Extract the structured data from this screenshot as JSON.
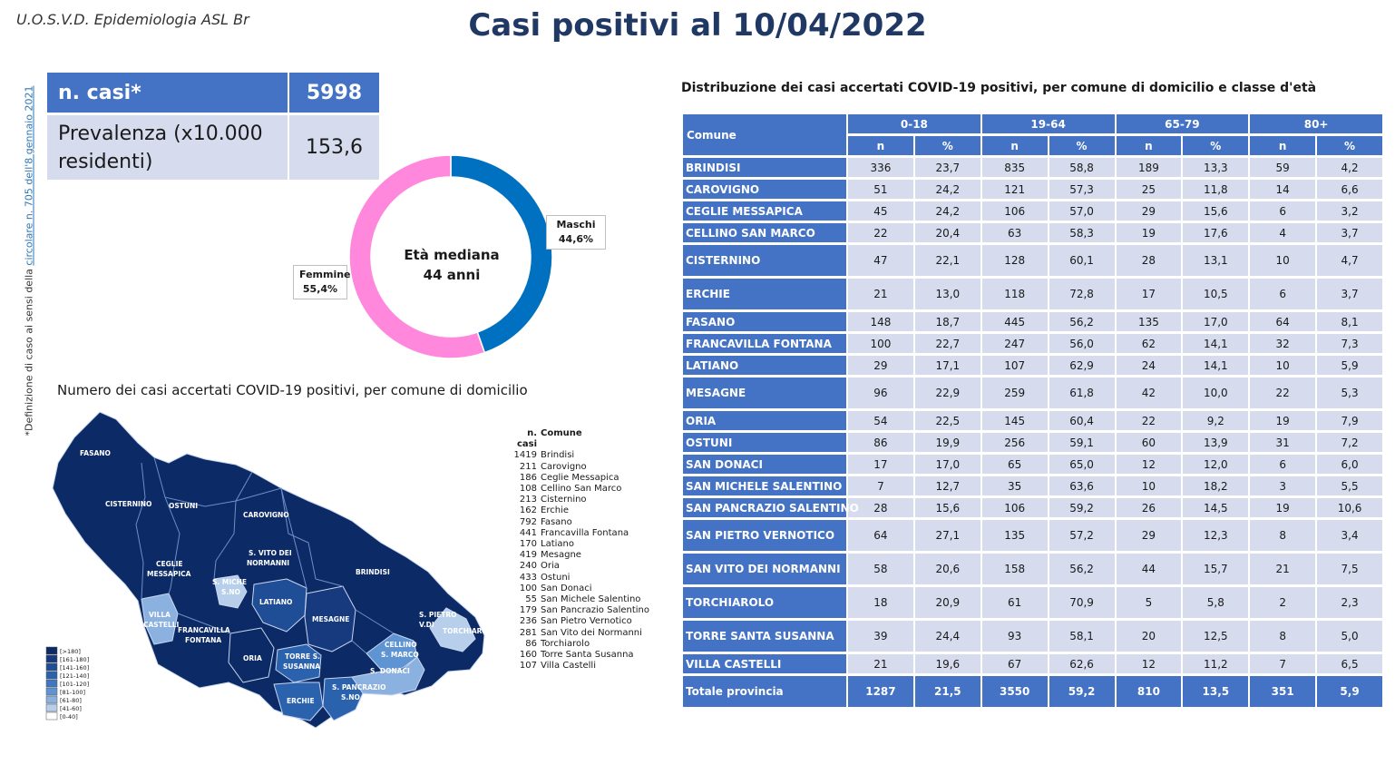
{
  "org": "U.O.S.V.D. Epidemiologia ASL Br",
  "title": "Casi positivi al 10/04/2022",
  "side_note": {
    "prefix": "*Definizione di caso ai sensi della ",
    "link": "circolare n. 705 dell'8 gennaio 2021"
  },
  "summary": {
    "cases_label": "n. casi*",
    "cases_value": "5998",
    "prevalence_label": "Prevalenza (x10.000 residenti)",
    "prevalence_value": "153,6"
  },
  "chart_data": [
    {
      "type": "pie",
      "donut": true,
      "labels": [
        "Maschi",
        "Femmine"
      ],
      "values": [
        44.6,
        55.4
      ],
      "value_labels": [
        "44,6%",
        "55,4%"
      ],
      "colors": [
        "#0070c0",
        "#ff88dd"
      ],
      "center_text": [
        "Età mediana",
        "44 anni"
      ]
    }
  ],
  "map": {
    "title": "Numero dei casi accertati COVID-19 positivi, per comune di domicilio",
    "legend_classes": [
      "[>180]",
      "[161-180]",
      "[141-160]",
      "[121-140]",
      "[101-120]",
      "[81-100]",
      "[61-80]",
      "[41-60]",
      "[0-40]"
    ],
    "legend_colors": [
      "#0c2a66",
      "#173a7f",
      "#1f4e96",
      "#2b62ae",
      "#3f78c2",
      "#5f94d2",
      "#8ab1df",
      "#b7cfeb",
      "#ffffff"
    ],
    "list_header_n": "n. casi",
    "list_header_comune": "Comune",
    "list": [
      {
        "n": "1419",
        "comune": "Brindisi"
      },
      {
        "n": "211",
        "comune": "Carovigno"
      },
      {
        "n": "186",
        "comune": "Ceglie Messapica"
      },
      {
        "n": "108",
        "comune": "Cellino San Marco"
      },
      {
        "n": "213",
        "comune": "Cisternino"
      },
      {
        "n": "162",
        "comune": "Erchie"
      },
      {
        "n": "792",
        "comune": "Fasano"
      },
      {
        "n": "441",
        "comune": "Francavilla Fontana"
      },
      {
        "n": "170",
        "comune": "Latiano"
      },
      {
        "n": "419",
        "comune": "Mesagne"
      },
      {
        "n": "240",
        "comune": "Oria"
      },
      {
        "n": "433",
        "comune": "Ostuni"
      },
      {
        "n": "100",
        "comune": "San Donaci"
      },
      {
        "n": "55",
        "comune": "San Michele Salentino"
      },
      {
        "n": "179",
        "comune": "San Pancrazio Salentino"
      },
      {
        "n": "236",
        "comune": "San Pietro Vernotico"
      },
      {
        "n": "281",
        "comune": "San Vito dei Normanni"
      },
      {
        "n": "86",
        "comune": "Torchiarolo"
      },
      {
        "n": "160",
        "comune": "Torre Santa Susanna"
      },
      {
        "n": "107",
        "comune": "Villa Castelli"
      }
    ],
    "labels": {
      "fasano": "FASANO",
      "cisternino": "CISTERNINO",
      "ostuni": "OSTUNI",
      "carovigno": "CAROVIGNO",
      "ceglie1": "CEGLIE",
      "ceglie2": "MESSAPICA",
      "svito1": "S. VITO DEI",
      "svito2": "NORMANNI",
      "brindisi": "BRINDISI",
      "smichele1": "S. MICHE",
      "smichele2": "S.NO",
      "latiano": "LATIANO",
      "villa1": "VILLA",
      "villa2": "CASTELLI",
      "francavilla1": "FRANCAVILLA",
      "francavilla2": "FONTANA",
      "mesagne": "MESAGNE",
      "spietro1": "S. PIETRO",
      "spietro2": "V.DI",
      "torchiarolo": "TORCHIAROLO",
      "cellino1": "CELLINO",
      "cellino2": "S. MARCO",
      "oria": "ORIA",
      "torre1": "TORRE S.",
      "torre2": "SUSANNA",
      "sdonaci": "S. DONACI",
      "spancrazio1": "S. PANCRAZIO",
      "spancrazio2": "S.NO",
      "erchie": "ERCHIE"
    }
  },
  "table": {
    "title": "Distribuzione dei casi accertati COVID-19 positivi, per comune di domicilio e classe d'età",
    "comune_header": "Comune",
    "age_groups": [
      "0-18",
      "19-64",
      "65-79",
      "80+"
    ],
    "sub_n": "n",
    "sub_pct": "%",
    "rows": [
      {
        "comune": "BRINDISI",
        "vals": [
          "336",
          "23,7",
          "835",
          "58,8",
          "189",
          "13,3",
          "59",
          "4,2"
        ]
      },
      {
        "comune": "CAROVIGNO",
        "vals": [
          "51",
          "24,2",
          "121",
          "57,3",
          "25",
          "11,8",
          "14",
          "6,6"
        ]
      },
      {
        "comune": "CEGLIE MESSAPICA",
        "vals": [
          "45",
          "24,2",
          "106",
          "57,0",
          "29",
          "15,6",
          "6",
          "3,2"
        ]
      },
      {
        "comune": "CELLINO SAN MARCO",
        "vals": [
          "22",
          "20,4",
          "63",
          "58,3",
          "19",
          "17,6",
          "4",
          "3,7"
        ]
      },
      {
        "comune": "CISTERNINO",
        "vals": [
          "47",
          "22,1",
          "128",
          "60,1",
          "28",
          "13,1",
          "10",
          "4,7"
        ]
      },
      {
        "comune": "ERCHIE",
        "vals": [
          "21",
          "13,0",
          "118",
          "72,8",
          "17",
          "10,5",
          "6",
          "3,7"
        ]
      },
      {
        "comune": "FASANO",
        "vals": [
          "148",
          "18,7",
          "445",
          "56,2",
          "135",
          "17,0",
          "64",
          "8,1"
        ]
      },
      {
        "comune": "FRANCAVILLA FONTANA",
        "vals": [
          "100",
          "22,7",
          "247",
          "56,0",
          "62",
          "14,1",
          "32",
          "7,3"
        ]
      },
      {
        "comune": "LATIANO",
        "vals": [
          "29",
          "17,1",
          "107",
          "62,9",
          "24",
          "14,1",
          "10",
          "5,9"
        ]
      },
      {
        "comune": "MESAGNE",
        "vals": [
          "96",
          "22,9",
          "259",
          "61,8",
          "42",
          "10,0",
          "22",
          "5,3"
        ]
      },
      {
        "comune": "ORIA",
        "vals": [
          "54",
          "22,5",
          "145",
          "60,4",
          "22",
          "9,2",
          "19",
          "7,9"
        ]
      },
      {
        "comune": "OSTUNI",
        "vals": [
          "86",
          "19,9",
          "256",
          "59,1",
          "60",
          "13,9",
          "31",
          "7,2"
        ]
      },
      {
        "comune": "SAN DONACI",
        "vals": [
          "17",
          "17,0",
          "65",
          "65,0",
          "12",
          "12,0",
          "6",
          "6,0"
        ]
      },
      {
        "comune": "SAN MICHELE SALENTINO",
        "vals": [
          "7",
          "12,7",
          "35",
          "63,6",
          "10",
          "18,2",
          "3",
          "5,5"
        ]
      },
      {
        "comune": "SAN PANCRAZIO SALENTINO",
        "vals": [
          "28",
          "15,6",
          "106",
          "59,2",
          "26",
          "14,5",
          "19",
          "10,6"
        ]
      },
      {
        "comune": "SAN PIETRO VERNOTICO",
        "vals": [
          "64",
          "27,1",
          "135",
          "57,2",
          "29",
          "12,3",
          "8",
          "3,4"
        ]
      },
      {
        "comune": "SAN VITO DEI NORMANNI",
        "vals": [
          "58",
          "20,6",
          "158",
          "56,2",
          "44",
          "15,7",
          "21",
          "7,5"
        ]
      },
      {
        "comune": "TORCHIAROLO",
        "vals": [
          "18",
          "20,9",
          "61",
          "70,9",
          "5",
          "5,8",
          "2",
          "2,3"
        ]
      },
      {
        "comune": "TORRE SANTA SUSANNA",
        "vals": [
          "39",
          "24,4",
          "93",
          "58,1",
          "20",
          "12,5",
          "8",
          "5,0"
        ]
      },
      {
        "comune": "VILLA CASTELLI",
        "vals": [
          "21",
          "19,6",
          "67",
          "62,6",
          "12",
          "11,2",
          "7",
          "6,5"
        ]
      }
    ],
    "total": {
      "comune": "Totale provincia",
      "vals": [
        "1287",
        "21,5",
        "3550",
        "59,2",
        "810",
        "13,5",
        "351",
        "5,9"
      ]
    }
  }
}
